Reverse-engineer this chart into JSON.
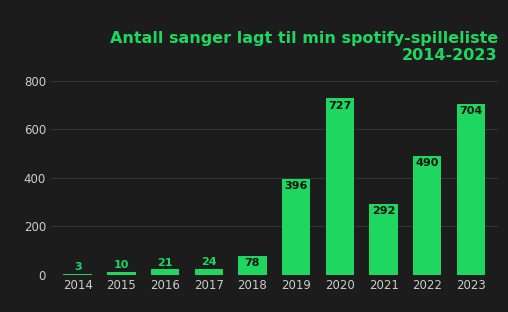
{
  "years": [
    "2014",
    "2015",
    "2016",
    "2017",
    "2018",
    "2019",
    "2020",
    "2021",
    "2022",
    "2023"
  ],
  "values": [
    3,
    10,
    21,
    24,
    78,
    396,
    727,
    292,
    490,
    704
  ],
  "bar_color": "#1ed760",
  "background_color": "#1c1c1c",
  "grid_color": "#3a3a3a",
  "label_color_inside": "#111111",
  "label_color_outside": "#1ed760",
  "tick_color": "#cccccc",
  "title_color": "#1ed760",
  "title_line1": "Antall sanger lagt til min spotify-spilleliste",
  "title_line2": "2014-2023",
  "title_fontsize": 11.5,
  "label_fontsize": 8,
  "tick_fontsize": 8.5,
  "ylim": [
    0,
    850
  ],
  "yticks": [
    0,
    200,
    400,
    600,
    800
  ],
  "small_bar_threshold": 60
}
